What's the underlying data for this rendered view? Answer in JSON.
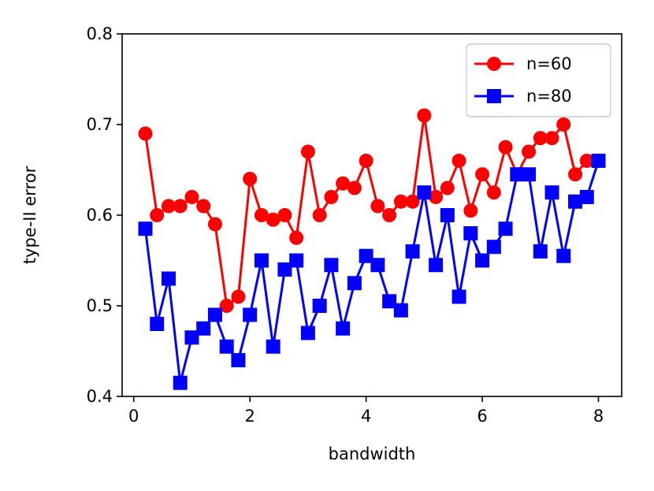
{
  "chart_data": {
    "type": "line",
    "xlabel": "bandwidth",
    "ylabel": "type-II error",
    "xlim": [
      -0.2,
      8.4
    ],
    "ylim": [
      0.4,
      0.8
    ],
    "xticks": [
      0,
      2,
      4,
      6,
      8
    ],
    "yticks": [
      0.4,
      0.5,
      0.6,
      0.7,
      0.8
    ],
    "ytick_labels": [
      "0.4",
      "0.5",
      "0.6",
      "0.7",
      "0.8"
    ],
    "grid": false,
    "legend_position": "top-right",
    "x": [
      0.2,
      0.4,
      0.6,
      0.8,
      1.0,
      1.2,
      1.4,
      1.6,
      1.8,
      2.0,
      2.2,
      2.4,
      2.6,
      2.8,
      3.0,
      3.2,
      3.4,
      3.6,
      3.8,
      4.0,
      4.2,
      4.4,
      4.6,
      4.8,
      5.0,
      5.2,
      5.4,
      5.6,
      5.8,
      6.0,
      6.2,
      6.4,
      6.6,
      6.8,
      7.0,
      7.2,
      7.4,
      7.6,
      7.8,
      8.0
    ],
    "series": [
      {
        "name": "n=60",
        "color": "#ff0000",
        "marker": "circle",
        "values": [
          0.69,
          0.6,
          0.61,
          0.61,
          0.62,
          0.61,
          0.59,
          0.5,
          0.51,
          0.64,
          0.6,
          0.595,
          0.6,
          0.575,
          0.67,
          0.6,
          0.62,
          0.635,
          0.63,
          0.66,
          0.61,
          0.6,
          0.615,
          0.615,
          0.71,
          0.62,
          0.63,
          0.66,
          0.605,
          0.645,
          0.625,
          0.675,
          0.645,
          0.67,
          0.685,
          0.685,
          0.7,
          0.645,
          0.66,
          0.66
        ]
      },
      {
        "name": "n=80",
        "color": "#0000ff",
        "marker": "square",
        "values": [
          0.585,
          0.48,
          0.53,
          0.415,
          0.465,
          0.475,
          0.49,
          0.455,
          0.44,
          0.49,
          0.55,
          0.455,
          0.54,
          0.55,
          0.47,
          0.5,
          0.545,
          0.475,
          0.525,
          0.555,
          0.545,
          0.505,
          0.495,
          0.56,
          0.625,
          0.545,
          0.6,
          0.51,
          0.58,
          0.55,
          0.565,
          0.585,
          0.645,
          0.645,
          0.56,
          0.625,
          0.555,
          0.615,
          0.62,
          0.66
        ]
      }
    ]
  }
}
